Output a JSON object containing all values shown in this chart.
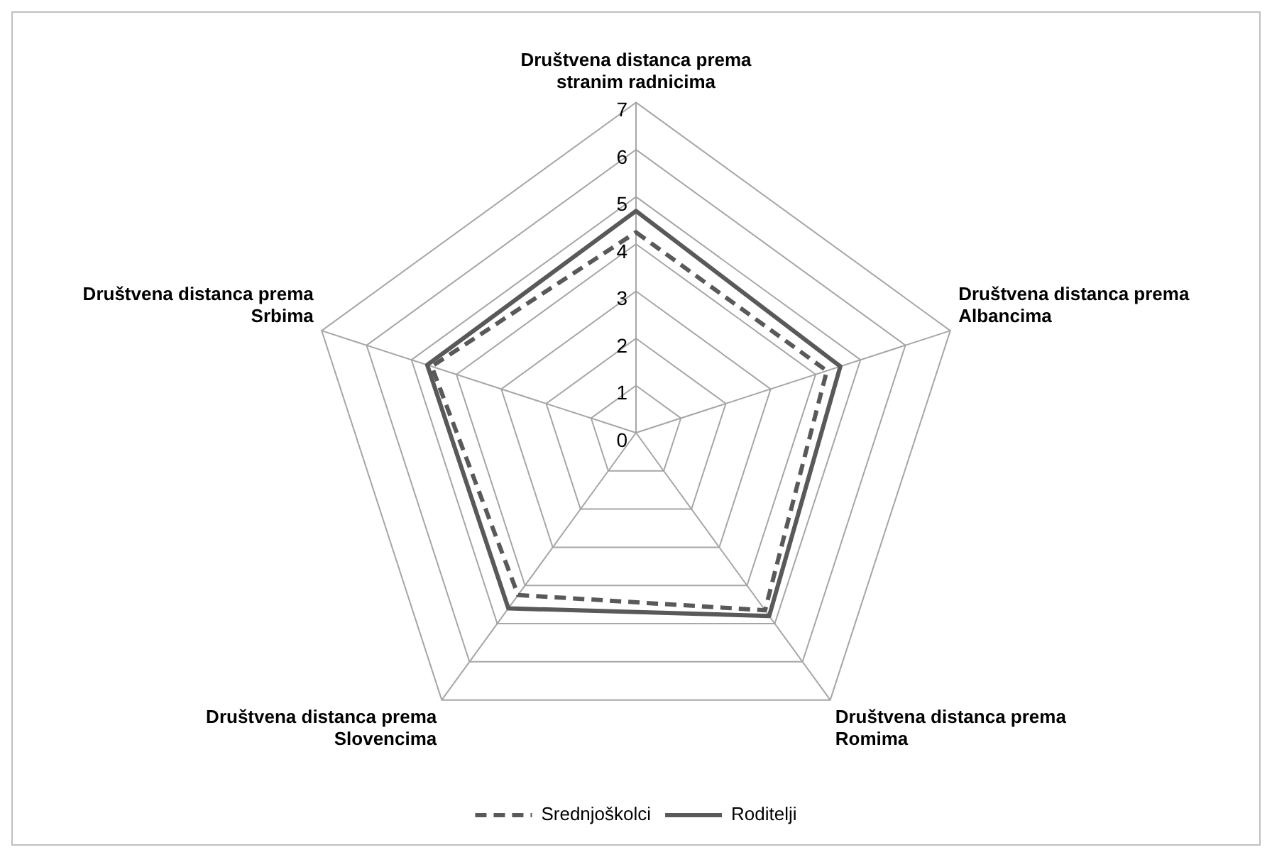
{
  "chart_data": {
    "type": "radar",
    "categories": [
      "Društvena distanca prema stranim radnicima",
      "Društvena distanca prema Albancima",
      "Društvena distanca prema Romima",
      "Društvena distanca prema Slovencima",
      "Društvena distanca prema Srbima"
    ],
    "series": [
      {
        "name": "Srednjoškolci",
        "color": "#595959",
        "line_style": "dashed",
        "values": [
          4.25,
          4.25,
          4.65,
          4.25,
          4.55
        ]
      },
      {
        "name": "Roditelji",
        "color": "#595959",
        "line_style": "solid",
        "values": [
          4.7,
          4.55,
          4.8,
          4.6,
          4.65
        ]
      }
    ],
    "ylim": [
      0,
      7
    ],
    "yticks": [
      0,
      1,
      2,
      3,
      4,
      5,
      6,
      7
    ],
    "grid": true,
    "legend": "bottom",
    "marker": "none"
  }
}
